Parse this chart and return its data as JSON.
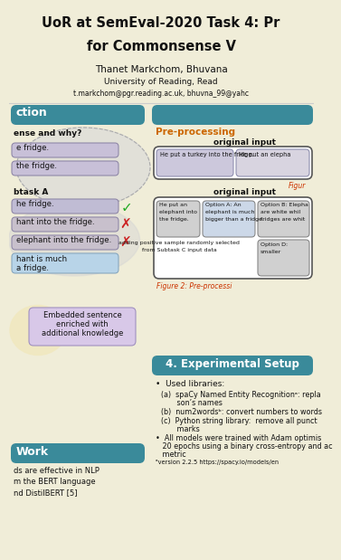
{
  "title_line1": "UoR at SemEval-2020 Task 4: Pr",
  "title_line2": "for Commonsense V",
  "author_line": "Thanet Markchom, Bhuvana",
  "affil_line": "University of Reading, Read",
  "email_line": "t.markchom@pgr.reading.ac.uk, bhuvna_99@yahc",
  "bg_color": "#f0edd8",
  "teal_header": "#3a8a9a",
  "orange_text": "Pre-processing",
  "section1_title": "ction",
  "section3_title": "4. Experimental Setup",
  "work_title": "Work",
  "fig_caption1": "Figur",
  "fig_caption2": "Figure 2: Pre-processi",
  "used_libraries": "Used libraries:",
  "bullet1a_1": "(a)  spaCy Named Entity Recognitionᵃ: repla",
  "bullet1a_2": "       son’s names",
  "bullet1b": "(b)  num2wordsᵇ: convert numbers to words",
  "bullet1c_1": "(c)  Python string library:  remove all punct",
  "bullet1c_2": "       marks",
  "bullet2_1": "•  All models were trained with Adam optimis",
  "bullet2_2": "   20 epochs using a binary cross-entropy and ac",
  "bullet2_3": "   metric",
  "footnote": "ᵃversion 2.2.5 https://spacy.io/models/en",
  "work_b1": "ds are effective in NLP",
  "work_b2": "m the BERT language",
  "work_b3": "nd DistilBERT [5]"
}
